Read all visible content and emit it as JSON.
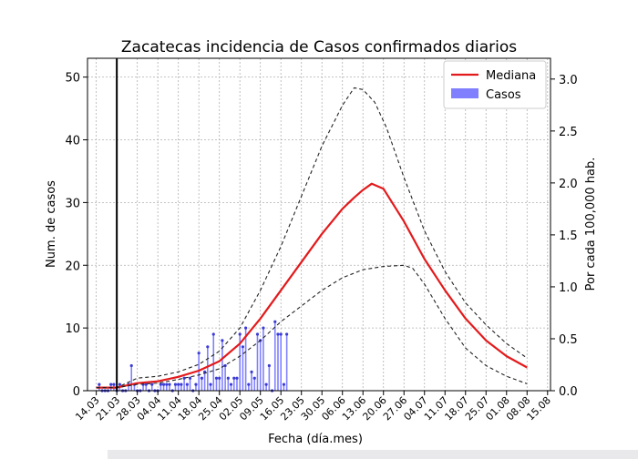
{
  "chart_data": {
    "type": "line",
    "title": "Zacatecas incidencia de Casos confirmados diarios",
    "xlabel": "Fecha (día.mes)",
    "ylabel": "Num. de casos",
    "y2label": "Por cada 100,000 hab.",
    "x_ticks": [
      "14.03",
      "21.03",
      "28.03",
      "04.04",
      "11.04",
      "18.04",
      "25.04",
      "02.05",
      "09.05",
      "16.05",
      "23.05",
      "30.05",
      "06.06",
      "13.06",
      "20.06",
      "27.06",
      "04.07",
      "11.07",
      "18.07",
      "25.07",
      "01.08",
      "08.08",
      "15.08"
    ],
    "xlim_days": [
      -3,
      155
    ],
    "ylim": [
      0,
      53
    ],
    "y_ticks": [
      0,
      10,
      20,
      30,
      40,
      50
    ],
    "y2lim": [
      0,
      3.2
    ],
    "y2_ticks": [
      "0.0",
      "0.5",
      "1.0",
      "1.5",
      "2.0",
      "2.5",
      "3.0"
    ],
    "grid": true,
    "legend": {
      "position": "top-right",
      "entries": [
        "Mediana",
        "Casos"
      ]
    },
    "colors": {
      "median": "#e31a1c",
      "bounds": "#222222",
      "cases": "#3b3bd6",
      "cases_fill": "#8080ff",
      "vline": "#000000"
    },
    "vline_day": 7,
    "series": [
      {
        "name": "Mediana",
        "style": "solid",
        "x": [
          0,
          7,
          14,
          21,
          28,
          35,
          42,
          49,
          56,
          63,
          70,
          77,
          84,
          88,
          91,
          94,
          98,
          105,
          112,
          119,
          126,
          133,
          140,
          147
        ],
        "y": [
          0.5,
          0.5,
          1.2,
          1.5,
          2.2,
          3.2,
          4.7,
          7.5,
          11.5,
          16.0,
          20.5,
          25.0,
          29.0,
          30.8,
          32.0,
          33.0,
          32.2,
          27.0,
          21.0,
          16.0,
          11.5,
          8.0,
          5.5,
          3.7
        ]
      },
      {
        "name": "upper",
        "style": "dashed",
        "x": [
          0,
          7,
          14,
          21,
          28,
          35,
          42,
          49,
          56,
          63,
          70,
          77,
          84,
          88,
          91,
          95,
          99,
          105,
          112,
          119,
          126,
          133,
          140,
          147
        ],
        "y": [
          0.5,
          0.5,
          2.0,
          2.3,
          3.0,
          4.2,
          6.3,
          10.0,
          16.0,
          23.0,
          31.0,
          39.0,
          45.5,
          48.3,
          48.0,
          46.0,
          42.0,
          34.0,
          25.5,
          19.0,
          14.0,
          10.5,
          7.5,
          5.2
        ]
      },
      {
        "name": "lower",
        "style": "dashed",
        "x": [
          0,
          7,
          14,
          21,
          28,
          35,
          42,
          49,
          56,
          63,
          70,
          77,
          84,
          91,
          98,
          105,
          108,
          112,
          119,
          126,
          133,
          140,
          147
        ],
        "y": [
          0.5,
          0.5,
          1.0,
          1.2,
          1.8,
          2.5,
          3.5,
          5.5,
          8.0,
          11.0,
          13.5,
          16.0,
          18.0,
          19.3,
          19.8,
          20.0,
          19.5,
          17.0,
          11.5,
          6.8,
          4.0,
          2.3,
          1.1
        ]
      },
      {
        "name": "Casos",
        "style": "stem",
        "x": [
          1,
          2,
          3,
          4,
          5,
          6,
          7,
          8,
          9,
          10,
          11,
          12,
          13,
          14,
          15,
          16,
          17,
          18,
          19,
          20,
          21,
          22,
          23,
          24,
          25,
          26,
          27,
          28,
          29,
          30,
          31,
          32,
          33,
          34,
          35,
          36,
          37,
          38,
          39,
          40,
          41,
          42,
          43,
          44,
          45,
          46,
          47,
          48,
          49,
          50,
          51,
          52,
          53,
          54,
          55,
          56,
          57,
          58,
          59,
          60,
          61,
          62,
          63,
          64,
          65
        ],
        "y": [
          1,
          0,
          0,
          0,
          1,
          1,
          0,
          1,
          0,
          0,
          1,
          4,
          1,
          0,
          0,
          1,
          1,
          0,
          1,
          0,
          0,
          1,
          1,
          1,
          1,
          0,
          1,
          1,
          1,
          2,
          1,
          2,
          0,
          1,
          6,
          2,
          3,
          7,
          1,
          9,
          2,
          2,
          8,
          4,
          2,
          1,
          2,
          2,
          9,
          7,
          10,
          1,
          3,
          2,
          9,
          8,
          10,
          1,
          4,
          0,
          11,
          9,
          9,
          1,
          9
        ]
      }
    ]
  }
}
